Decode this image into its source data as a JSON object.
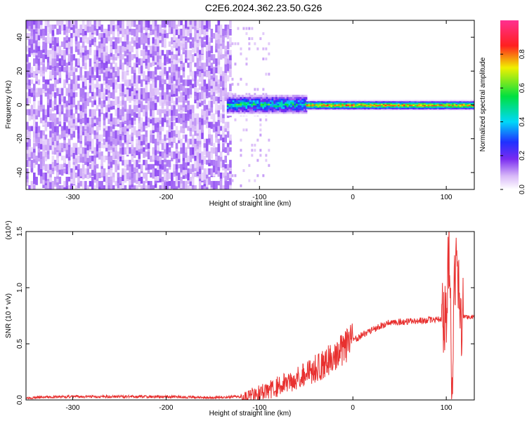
{
  "title": "C2E6.2024.362.23.50.G26",
  "chart_data": [
    {
      "type": "heatmap",
      "xlabel": "Height of straight line (km)",
      "ylabel": "Frequency (Hz)",
      "xlim": [
        -350,
        130
      ],
      "ylim": [
        -50,
        50
      ],
      "x_ticks": [
        -300,
        -200,
        -100,
        0,
        100
      ],
      "x_tick_labels": [
        "-300",
        "-200",
        "-100",
        "0",
        "100"
      ],
      "y_ticks": [
        -40,
        -20,
        0,
        20,
        40
      ],
      "y_tick_labels": [
        "-40",
        "-20",
        "0",
        "20",
        "40"
      ],
      "colorbar": {
        "label": "Normalized spectral amplitude",
        "range": [
          0,
          1
        ],
        "ticks": [
          0.0,
          0.2,
          0.4,
          0.6,
          0.8
        ],
        "tick_labels": [
          "0.0",
          "0.2",
          "0.4",
          "0.6",
          "0.8"
        ]
      },
      "regions": [
        {
          "name": "noise",
          "x_range": [
            -350,
            -130
          ],
          "freq_range": [
            -50,
            50
          ],
          "amplitude": 0.1
        },
        {
          "name": "onset",
          "x_range": [
            -135,
            -50
          ],
          "freq_center": 0,
          "freq_halfwidth": 6,
          "amplitude": 0.45
        },
        {
          "name": "signal",
          "x_range": [
            -50,
            130
          ],
          "freq_center": 0,
          "freq_halfwidth": 3,
          "amplitude": 0.9
        }
      ],
      "grid": false
    },
    {
      "type": "line",
      "xlabel": "Height of straight line (km)",
      "ylabel": "SNR (10 * v/v)",
      "y_multiplier": "(x10⁴)",
      "xlim": [
        -350,
        130
      ],
      "ylim": [
        0,
        1.5
      ],
      "x_ticks": [
        -300,
        -200,
        -100,
        0,
        100
      ],
      "x_tick_labels": [
        "-300",
        "-200",
        "-100",
        "0",
        "100"
      ],
      "y_ticks": [
        0.0,
        0.5,
        1.0,
        1.5
      ],
      "y_tick_labels": [
        "0.0",
        "0.5",
        "1.0",
        "1.5"
      ],
      "color": "#e8302f",
      "x": [
        -350,
        -300,
        -250,
        -200,
        -150,
        -120,
        -100,
        -80,
        -60,
        -40,
        -30,
        -20,
        -10,
        0,
        10,
        20,
        30,
        40,
        60,
        80,
        95,
        100,
        103,
        106,
        110,
        115,
        130
      ],
      "y": [
        0.02,
        0.03,
        0.03,
        0.03,
        0.02,
        0.03,
        0.06,
        0.12,
        0.2,
        0.28,
        0.33,
        0.38,
        0.45,
        0.53,
        0.58,
        0.62,
        0.66,
        0.69,
        0.7,
        0.71,
        0.72,
        0.73,
        1.45,
        0.05,
        1.3,
        0.74,
        0.74
      ],
      "grid": false
    }
  ]
}
